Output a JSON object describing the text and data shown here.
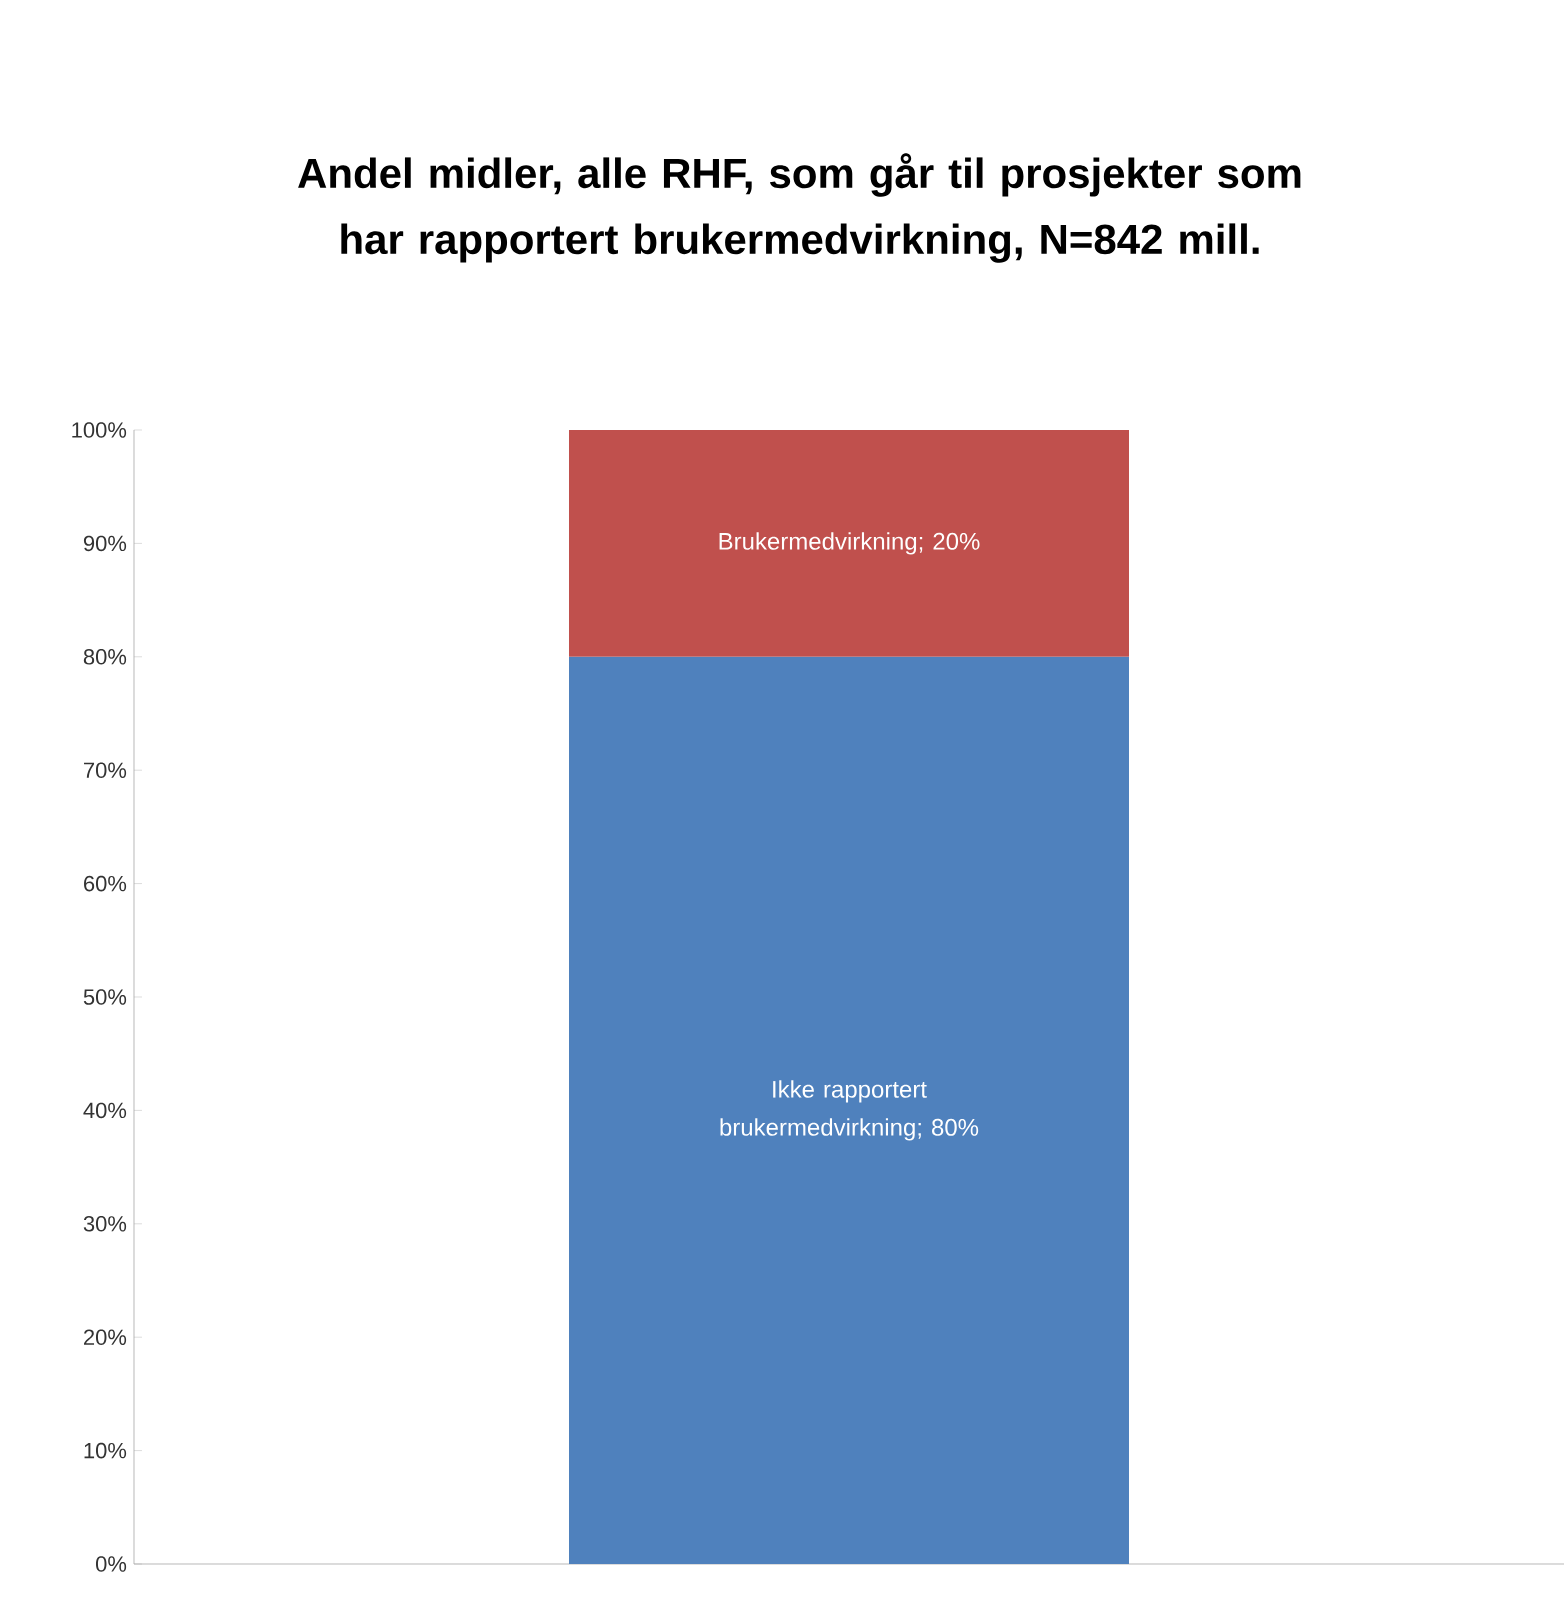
{
  "chart_data": {
    "type": "bar",
    "title": "Andel midler, alle RHF, som går til prosjekter som har rapportert brukermedvirkning, N=842 mill.",
    "categories": [
      null
    ],
    "stacked": true,
    "tick_labels": "y",
    "ylim": [
      0,
      100
    ],
    "yticks": [
      {
        "value": 0,
        "label": "0%"
      },
      {
        "value": 10,
        "label": "10%"
      },
      {
        "value": 20,
        "label": "20%"
      },
      {
        "value": 30,
        "label": "30%"
      },
      {
        "value": 40,
        "label": "40%"
      },
      {
        "value": 50,
        "label": "50%"
      },
      {
        "value": 60,
        "label": "60%"
      },
      {
        "value": 70,
        "label": "70%"
      },
      {
        "value": 80,
        "label": "80%"
      },
      {
        "value": 90,
        "label": "90%"
      },
      {
        "value": 100,
        "label": "100%"
      }
    ],
    "series": [
      {
        "color": "#4f81bd",
        "values": [
          80
        ],
        "value_labels": [
          "Ikke rapportert brukermedvirkning; 80%"
        ]
      },
      {
        "color": "#c0504d",
        "values": [
          20
        ],
        "value_labels": [
          "Brukermedvirkning; 20%"
        ]
      }
    ]
  }
}
